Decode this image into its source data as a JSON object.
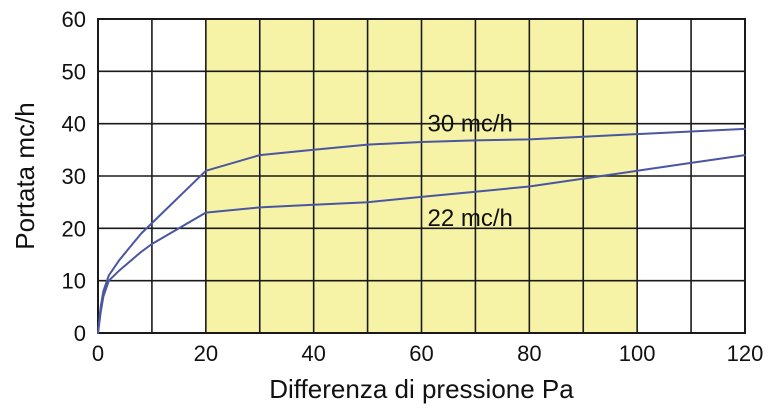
{
  "chart_data": {
    "type": "line",
    "xlabel": "Differenza di pressione Pa",
    "ylabel": "Portata mc/h",
    "xlim": [
      0,
      120
    ],
    "ylim": [
      0,
      60
    ],
    "x_ticks": [
      0,
      20,
      40,
      60,
      80,
      100,
      120
    ],
    "y_ticks": [
      0,
      10,
      20,
      30,
      40,
      50,
      60
    ],
    "x_grid_step": 10,
    "y_grid_step": 10,
    "grid": true,
    "shaded_range": {
      "x": [
        20,
        100
      ],
      "color": "#f7f3a6"
    },
    "line_color": "#4a56a0",
    "series": [
      {
        "label": "30 mc/h",
        "label_at": [
          60,
          40
        ],
        "points": [
          [
            0,
            0
          ],
          [
            0.5,
            5
          ],
          [
            1,
            8
          ],
          [
            2,
            11
          ],
          [
            4,
            14
          ],
          [
            8,
            19
          ],
          [
            10,
            21
          ],
          [
            20,
            31
          ],
          [
            30,
            34
          ],
          [
            40,
            35
          ],
          [
            50,
            36
          ],
          [
            60,
            36.5
          ],
          [
            70,
            36.8
          ],
          [
            80,
            37
          ],
          [
            90,
            37.5
          ],
          [
            100,
            38
          ],
          [
            110,
            38.5
          ],
          [
            120,
            39
          ]
        ]
      },
      {
        "label": "22 mc/h",
        "label_at": [
          60,
          22
        ],
        "points": [
          [
            0,
            0
          ],
          [
            0.5,
            4
          ],
          [
            1,
            7
          ],
          [
            2,
            10
          ],
          [
            4,
            12
          ],
          [
            8,
            15.5
          ],
          [
            10,
            17
          ],
          [
            20,
            23
          ],
          [
            30,
            24
          ],
          [
            40,
            24.5
          ],
          [
            50,
            25
          ],
          [
            60,
            26
          ],
          [
            70,
            27
          ],
          [
            80,
            28
          ],
          [
            90,
            29.5
          ],
          [
            100,
            31
          ],
          [
            110,
            32.5
          ],
          [
            120,
            34
          ]
        ]
      }
    ]
  }
}
